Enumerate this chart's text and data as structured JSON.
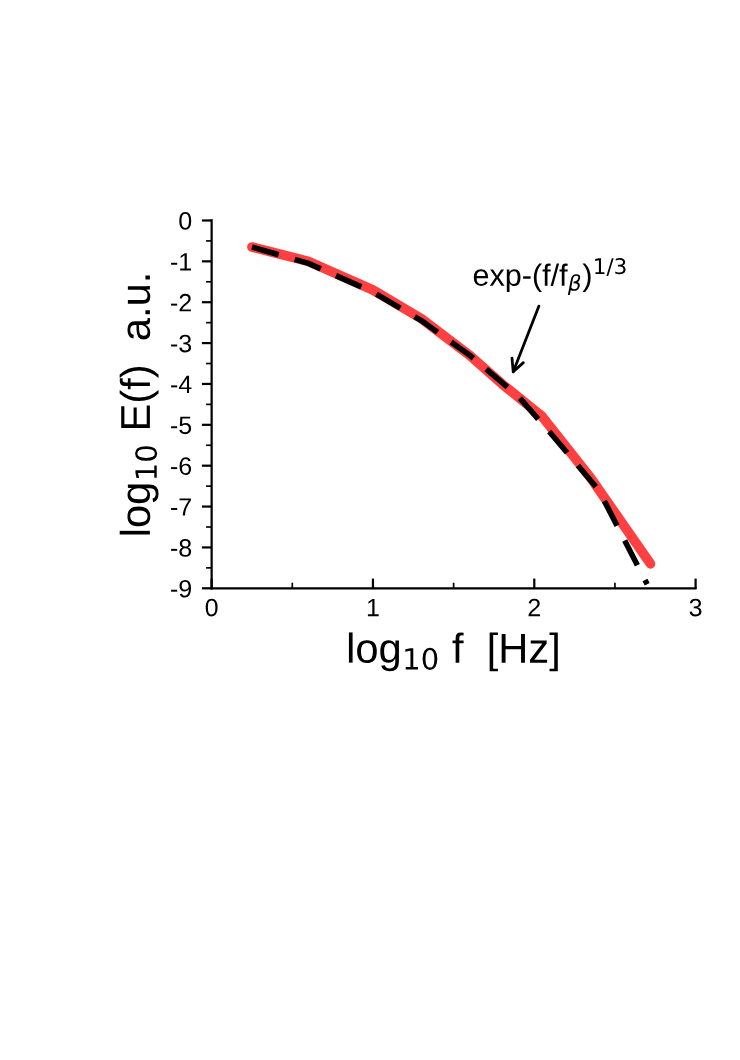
{
  "chart_data": {
    "type": "line",
    "xlabel": "log$_{10}$ f  [Hz]",
    "ylabel": "log$_{10}$ E(f)  a.u.",
    "xlim": [
      0,
      3
    ],
    "ylim": [
      -9,
      0
    ],
    "xticks": [
      0,
      1,
      2,
      3
    ],
    "yticks": [
      -9,
      -8,
      -7,
      -6,
      -5,
      -4,
      -3,
      -2,
      -1,
      0
    ],
    "series": [
      {
        "color": "#ff4040",
        "line_style": "solid",
        "x": [
          0.25,
          0.6,
          1.0,
          1.3,
          1.6,
          1.8,
          2.05,
          2.35,
          2.72
        ],
        "values": [
          -0.65,
          -1.0,
          -1.7,
          -2.4,
          -3.3,
          -4.0,
          -4.8,
          -6.3,
          -8.4
        ]
      },
      {
        "color": "#000000",
        "line_style": "dashed",
        "x": [
          0.25,
          0.6,
          1.0,
          1.3,
          1.6,
          1.9,
          2.1,
          2.4,
          2.7
        ],
        "values": [
          -0.65,
          -1.05,
          -1.75,
          -2.45,
          -3.3,
          -4.3,
          -5.2,
          -6.6,
          -8.9
        ]
      }
    ],
    "annotations": [
      {
        "text": "exp-(f/f$_{β}$)$^{1/3}$",
        "x": 1.85,
        "y": -3.9
      }
    ],
    "grid": false,
    "marker": "none"
  }
}
